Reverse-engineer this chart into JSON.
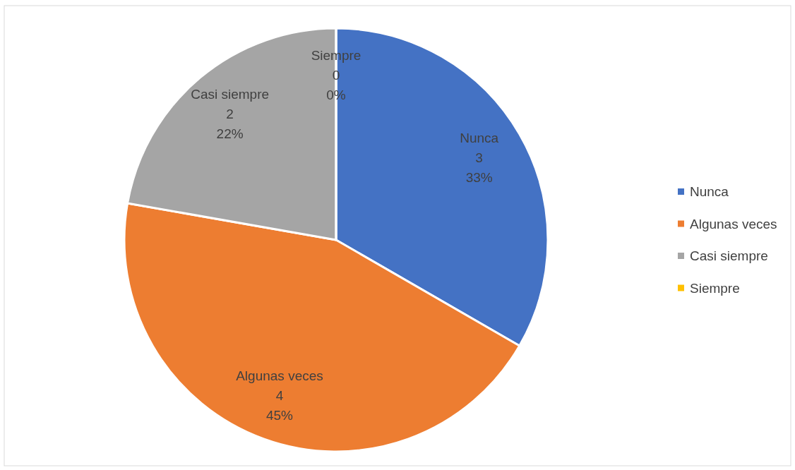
{
  "chart_data": {
    "type": "pie",
    "categories": [
      "Nunca",
      "Algunas veces",
      "Casi siempre",
      "Siempre"
    ],
    "values": [
      3,
      4,
      2,
      0
    ],
    "colors": [
      "#4472c4",
      "#ed7d31",
      "#a5a5a5",
      "#ffc000"
    ],
    "value_labels": [
      "3\n33%",
      "4\n45%",
      "2\n22%",
      "0\n0%"
    ],
    "legend": "right"
  }
}
